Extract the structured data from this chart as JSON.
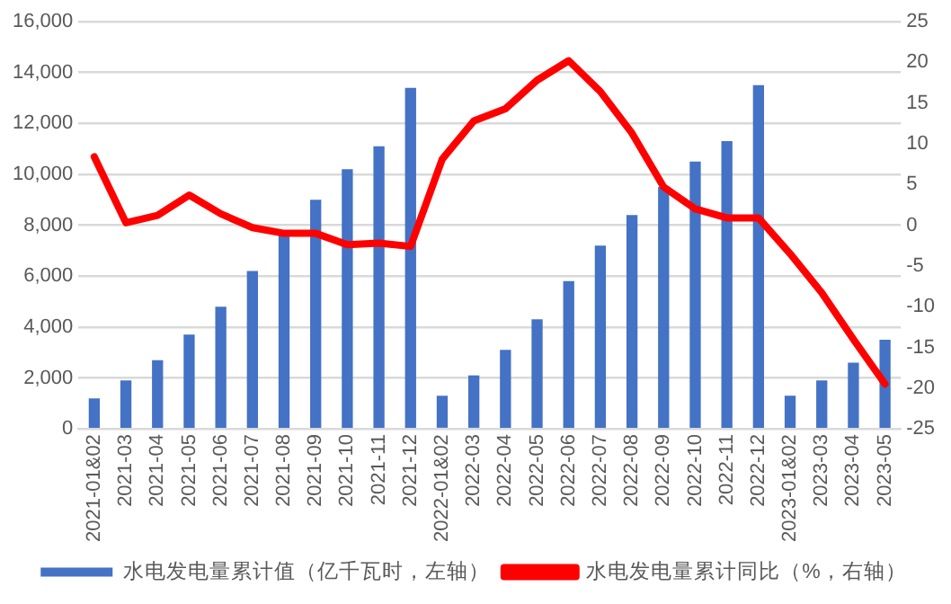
{
  "chart_data": {
    "type": "bar",
    "categories": [
      "2021-01&02",
      "2021-03",
      "2021-04",
      "2021-05",
      "2021-06",
      "2021-07",
      "2021-08",
      "2021-09",
      "2021-10",
      "2021-11",
      "2021-12",
      "2022-01&02",
      "2022-03",
      "2022-04",
      "2022-05",
      "2022-06",
      "2022-07",
      "2022-08",
      "2022-09",
      "2022-10",
      "2022-11",
      "2022-12",
      "2023-01&02",
      "2023-03",
      "2023-04",
      "2023-05"
    ],
    "series": [
      {
        "name": "水电发电量累计值（亿千瓦时，左轴）",
        "color": "#4472c4",
        "values": [
          1200,
          1900,
          2700,
          3700,
          4800,
          6200,
          7600,
          9000,
          10200,
          11100,
          13400,
          1300,
          2100,
          3100,
          4300,
          5800,
          7200,
          8400,
          9500,
          10500,
          11300,
          13500,
          1300,
          1900,
          2600,
          3500
        ]
      },
      {
        "name": "水电发电量累计同比（%，右轴）",
        "type": "line",
        "axis": "y2",
        "color": "#ff0000",
        "values": [
          8.4,
          0.3,
          1.2,
          3.7,
          1.4,
          -0.3,
          -1.0,
          -1.0,
          -2.4,
          -2.2,
          -2.6,
          8.1,
          12.8,
          14.3,
          17.8,
          20.2,
          16.4,
          11.3,
          4.7,
          2.0,
          0.9,
          0.9,
          -3.5,
          -8.3,
          -14.0,
          -19.5
        ]
      }
    ],
    "ylim": [
      0,
      16000
    ],
    "yticks": [
      {
        "value": 0,
        "label": "0"
      },
      {
        "value": 2000,
        "label": "2,000"
      },
      {
        "value": 4000,
        "label": "4,000"
      },
      {
        "value": 6000,
        "label": "6,000"
      },
      {
        "value": 8000,
        "label": "8,000"
      },
      {
        "value": 10000,
        "label": "10,000"
      },
      {
        "value": 12000,
        "label": "12,000"
      },
      {
        "value": 14000,
        "label": "14,000"
      },
      {
        "value": 16000,
        "label": "16,000"
      }
    ],
    "y2lim": [
      -25,
      25
    ],
    "y2ticks": [
      -25,
      -20,
      -15,
      -10,
      -5,
      0,
      5,
      10,
      15,
      20,
      25
    ],
    "grid": "y",
    "legend": "bottom",
    "marker": "none",
    "line_style": "solid"
  }
}
